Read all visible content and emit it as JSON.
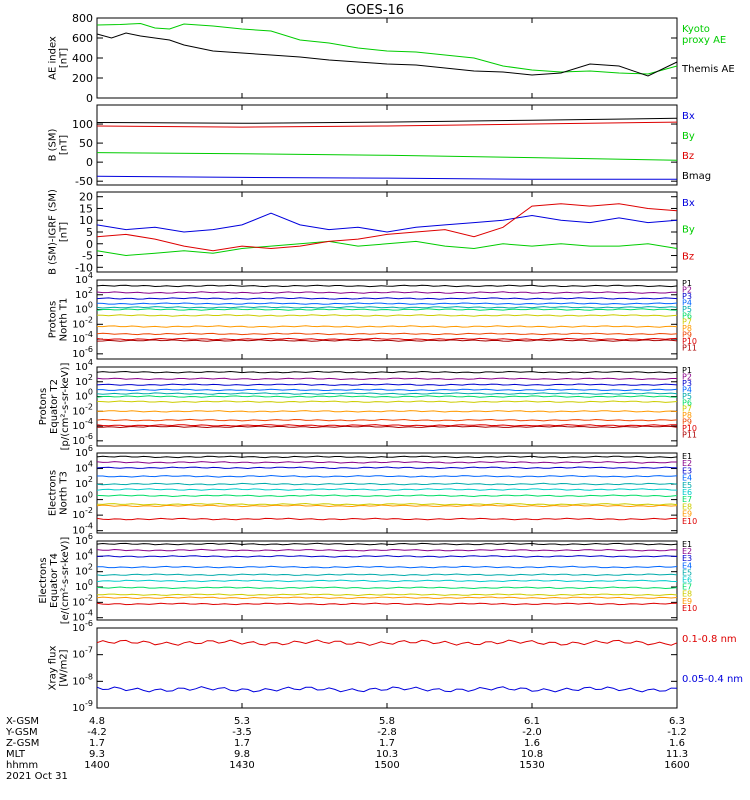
{
  "title": "GOES-16",
  "colors": {
    "black": "#000000",
    "green": "#00cc00",
    "blue": "#0000dd",
    "red": "#dd0000",
    "p": [
      "#000000",
      "#880088",
      "#0000cc",
      "#0066ff",
      "#00aaaa",
      "#00cccc",
      "#00dd66",
      "#cccc00",
      "#ff9900",
      "#ee4400",
      "#bb0000"
    ],
    "e": [
      "#000000",
      "#880088",
      "#0000cc",
      "#0066ff",
      "#00aaaa",
      "#00cccc",
      "#00dd66",
      "#cccc00",
      "#ff9900",
      "#dd0000",
      "#aa0000"
    ]
  },
  "chart_data": [
    {
      "type": "line",
      "ylabel": [
        "AE index",
        "[nT]"
      ],
      "ylim": [
        0,
        800
      ],
      "yticks": [
        0,
        200,
        400,
        600,
        800
      ],
      "yticklabels": [
        "0",
        "200",
        "400",
        "600",
        "800"
      ],
      "series": [
        {
          "name": "Kyoto proxy AE",
          "legend": [
            "Kyoto",
            "proxy AE"
          ],
          "color": "#00cc00",
          "x": [
            0,
            8,
            15,
            20,
            25,
            30,
            40,
            50,
            60,
            70,
            80,
            90,
            100,
            110,
            120,
            130,
            140,
            150,
            160,
            170,
            180,
            190,
            200
          ],
          "y": [
            730,
            735,
            745,
            700,
            690,
            740,
            720,
            690,
            670,
            580,
            550,
            500,
            470,
            460,
            430,
            400,
            320,
            280,
            260,
            270,
            250,
            240,
            320
          ]
        },
        {
          "name": "Themis AE",
          "legend": [
            "Themis AE"
          ],
          "color": "#000000",
          "x": [
            0,
            5,
            10,
            15,
            20,
            25,
            30,
            40,
            50,
            60,
            70,
            80,
            90,
            100,
            110,
            120,
            130,
            140,
            150,
            160,
            170,
            180,
            190,
            200
          ],
          "y": [
            640,
            600,
            650,
            620,
            600,
            580,
            530,
            470,
            450,
            430,
            410,
            380,
            360,
            340,
            330,
            300,
            270,
            260,
            230,
            250,
            340,
            320,
            220,
            360
          ]
        }
      ]
    },
    {
      "type": "line",
      "ylabel": [
        "B (SM)",
        "[nT]"
      ],
      "ylim": [
        -60,
        150
      ],
      "yticks": [
        -50,
        0,
        50,
        100
      ],
      "yticklabels": [
        "-50",
        "0",
        "50",
        "100"
      ],
      "series": [
        {
          "name": "Bx",
          "legend": [
            "Bx"
          ],
          "color": "#0000dd",
          "x": [
            0,
            50,
            100,
            150,
            200
          ],
          "y": [
            -37,
            -40,
            -42,
            -45,
            -45
          ]
        },
        {
          "name": "By",
          "legend": [
            "By"
          ],
          "color": "#00cc00",
          "x": [
            0,
            50,
            100,
            150,
            200
          ],
          "y": [
            25,
            22,
            18,
            12,
            5
          ]
        },
        {
          "name": "Bz",
          "legend": [
            "Bz"
          ],
          "color": "#dd0000",
          "x": [
            0,
            50,
            100,
            150,
            200
          ],
          "y": [
            95,
            92,
            95,
            100,
            105
          ]
        },
        {
          "name": "Bmag",
          "legend": [
            "Bmag"
          ],
          "color": "#000000",
          "x": [
            0,
            50,
            100,
            150,
            200
          ],
          "y": [
            104,
            102,
            105,
            110,
            115
          ]
        }
      ]
    },
    {
      "type": "line",
      "ylabel": [
        "B (SM)-IGRF (SM)",
        "[nT]"
      ],
      "ylim": [
        -12,
        22
      ],
      "yticks": [
        -10,
        -5,
        0,
        5,
        10,
        15,
        20
      ],
      "yticklabels": [
        "-10",
        "-5",
        "0",
        "5",
        "10",
        "15",
        "20"
      ],
      "series": [
        {
          "name": "Bx",
          "legend": [
            "Bx"
          ],
          "color": "#0000dd",
          "x": [
            0,
            10,
            20,
            30,
            40,
            50,
            60,
            70,
            80,
            90,
            100,
            110,
            120,
            130,
            140,
            150,
            160,
            170,
            180,
            190,
            200
          ],
          "y": [
            8,
            6,
            7,
            5,
            6,
            8,
            13,
            8,
            6,
            7,
            5,
            7,
            8,
            9,
            10,
            12,
            10,
            9,
            11,
            9,
            10
          ]
        },
        {
          "name": "By",
          "legend": [
            "By"
          ],
          "color": "#00cc00",
          "x": [
            0,
            10,
            20,
            30,
            40,
            50,
            60,
            70,
            80,
            90,
            100,
            110,
            120,
            130,
            140,
            150,
            160,
            170,
            180,
            190,
            200
          ],
          "y": [
            -3,
            -5,
            -4,
            -3,
            -4,
            -2,
            -1,
            0,
            1,
            -1,
            0,
            1,
            -1,
            -2,
            0,
            -1,
            0,
            -1,
            -1,
            0,
            -2
          ]
        },
        {
          "name": "Bz",
          "legend": [
            "Bz"
          ],
          "color": "#dd0000",
          "x": [
            0,
            10,
            20,
            30,
            40,
            50,
            60,
            70,
            80,
            90,
            100,
            110,
            120,
            130,
            140,
            150,
            160,
            170,
            180,
            190,
            200
          ],
          "y": [
            3,
            4,
            2,
            -1,
            -3,
            -1,
            -2,
            -1,
            1,
            2,
            4,
            5,
            6,
            3,
            7,
            16,
            17,
            16,
            17,
            15,
            14
          ]
        }
      ]
    },
    {
      "type": "line",
      "log": true,
      "ylabel": [
        "Protons",
        "North T1"
      ],
      "ylim": [
        -6.7,
        4
      ],
      "ytick_exp": [
        -6,
        -4,
        -2,
        0,
        2,
        4
      ],
      "series": [
        {
          "name": "P1",
          "legend": [
            "P1"
          ],
          "color": "#000000",
          "level": 3.2
        },
        {
          "name": "P2",
          "legend": [
            "P2"
          ],
          "color": "#880088",
          "level": 2.3
        },
        {
          "name": "P3",
          "legend": [
            "P3"
          ],
          "color": "#0000cc",
          "level": 1.5
        },
        {
          "name": "P4",
          "legend": [
            "P4"
          ],
          "color": "#0066ff",
          "level": 0.8
        },
        {
          "name": "P5",
          "legend": [
            "P5"
          ],
          "color": "#00aaaa",
          "level": 0.3
        },
        {
          "name": "P6",
          "legend": [
            "P6"
          ],
          "color": "#00dd66",
          "level": 0.0
        },
        {
          "name": "P7",
          "legend": [
            "P7"
          ],
          "color": "#cccc00",
          "level": -0.8
        },
        {
          "name": "P8",
          "legend": [
            "P8"
          ],
          "color": "#ff9900",
          "level": -2.3
        },
        {
          "name": "P9",
          "legend": [
            "P9"
          ],
          "color": "#ee4400",
          "level": -3.3
        },
        {
          "name": "P10",
          "legend": [
            "P10"
          ],
          "color": "#dd0000",
          "level": -4.0
        },
        {
          "name": "P11",
          "legend": [
            "P11"
          ],
          "color": "#aa0000",
          "level": -4.2
        }
      ]
    },
    {
      "type": "line",
      "log": true,
      "ylabel": [
        "Protons",
        "Equator T2",
        "[p/(cm²-s-sr-keV)]"
      ],
      "ylim": [
        -6.7,
        4
      ],
      "ytick_exp": [
        -6,
        -4,
        -2,
        0,
        2,
        4
      ],
      "series": [
        {
          "name": "P1",
          "legend": [
            "P1"
          ],
          "color": "#000000",
          "level": 3.3
        },
        {
          "name": "P2",
          "legend": [
            "P2"
          ],
          "color": "#880088",
          "level": 2.4
        },
        {
          "name": "P3",
          "legend": [
            "P3"
          ],
          "color": "#0000cc",
          "level": 1.6
        },
        {
          "name": "P4",
          "legend": [
            "P4"
          ],
          "color": "#0066ff",
          "level": 0.9
        },
        {
          "name": "P5",
          "legend": [
            "P5"
          ],
          "color": "#00aaaa",
          "level": 0.4
        },
        {
          "name": "P6",
          "legend": [
            "P6"
          ],
          "color": "#00dd66",
          "level": 0.0
        },
        {
          "name": "P7",
          "legend": [
            "P7"
          ],
          "color": "#cccc00",
          "level": -0.7
        },
        {
          "name": "P8",
          "legend": [
            "P8"
          ],
          "color": "#ff9900",
          "level": -2.0
        },
        {
          "name": "P9",
          "legend": [
            "P9"
          ],
          "color": "#ee4400",
          "level": -3.2
        },
        {
          "name": "P10",
          "legend": [
            "P10"
          ],
          "color": "#dd0000",
          "level": -3.9
        },
        {
          "name": "P11",
          "legend": [
            "P11"
          ],
          "color": "#aa0000",
          "level": -4.1
        }
      ]
    },
    {
      "type": "line",
      "log": true,
      "ylabel": [
        "Electrons",
        "North T3"
      ],
      "ylim": [
        -4.3,
        6
      ],
      "ytick_exp": [
        -4,
        -2,
        0,
        2,
        4,
        6
      ],
      "series": [
        {
          "name": "E1",
          "legend": [
            "E1"
          ],
          "color": "#000000",
          "level": 5.5
        },
        {
          "name": "E2",
          "legend": [
            "E2"
          ],
          "color": "#880088",
          "level": 4.8
        },
        {
          "name": "E3",
          "legend": [
            "E3"
          ],
          "color": "#0000cc",
          "level": 4.1
        },
        {
          "name": "E4",
          "legend": [
            "E4"
          ],
          "color": "#0066ff",
          "level": 3.0
        },
        {
          "name": "E5",
          "legend": [
            "E5"
          ],
          "color": "#00aaaa",
          "level": 2.0
        },
        {
          "name": "E6",
          "legend": [
            "E6"
          ],
          "color": "#00cccc",
          "level": 1.3
        },
        {
          "name": "E7",
          "legend": [
            "E7"
          ],
          "color": "#00dd66",
          "level": 0.5
        },
        {
          "name": "E8",
          "legend": [
            "E8"
          ],
          "color": "#cccc00",
          "level": -0.6
        },
        {
          "name": "E9",
          "legend": [
            "E9"
          ],
          "color": "#ff9900",
          "level": -0.8
        },
        {
          "name": "E10",
          "legend": [
            "E10"
          ],
          "color": "#dd0000",
          "level": -2.5
        }
      ]
    },
    {
      "type": "line",
      "log": true,
      "ylabel": [
        "Electrons",
        "Equator T4",
        "[e/(cm²-s-sr-keV)]"
      ],
      "ylim": [
        -4.3,
        6
      ],
      "ytick_exp": [
        -4,
        -2,
        0,
        2,
        4,
        6
      ],
      "series": [
        {
          "name": "E1",
          "legend": [
            "E1"
          ],
          "color": "#000000",
          "level": 5.6
        },
        {
          "name": "E2",
          "legend": [
            "E2"
          ],
          "color": "#880088",
          "level": 4.8
        },
        {
          "name": "E3",
          "legend": [
            "E3"
          ],
          "color": "#0000cc",
          "level": 4.0
        },
        {
          "name": "E4",
          "legend": [
            "E4"
          ],
          "color": "#0066ff",
          "level": 2.6
        },
        {
          "name": "E5",
          "legend": [
            "E5"
          ],
          "color": "#00aaaa",
          "level": 1.6
        },
        {
          "name": "E6",
          "legend": [
            "E6"
          ],
          "color": "#00cccc",
          "level": 0.8
        },
        {
          "name": "E7",
          "legend": [
            "E7"
          ],
          "color": "#00dd66",
          "level": -0.1
        },
        {
          "name": "E8",
          "legend": [
            "E8"
          ],
          "color": "#cccc00",
          "level": -1.0
        },
        {
          "name": "E9",
          "legend": [
            "E9"
          ],
          "color": "#ff9900",
          "level": -1.4
        },
        {
          "name": "E10",
          "legend": [
            "E10"
          ],
          "color": "#dd0000",
          "level": -2.2
        }
      ]
    },
    {
      "type": "line",
      "log": true,
      "ylabel": [
        "Xray flux",
        "[W/m2]"
      ],
      "ylim": [
        -9,
        -6
      ],
      "ytick_exp": [
        -9,
        -8,
        -7,
        -6
      ],
      "series": [
        {
          "name": "0.1-0.8 nm",
          "legend": [
            "0.1-0.8 nm"
          ],
          "color": "#dd0000",
          "level": -6.55
        },
        {
          "name": "0.05-0.4 nm",
          "legend": [
            "0.05-0.4 nm"
          ],
          "color": "#0000dd",
          "level": -8.3
        }
      ]
    }
  ],
  "x_axis": {
    "xlim": [
      0,
      200
    ],
    "ticks": [
      0,
      50,
      100,
      150,
      200
    ],
    "row_labels": [
      "X-GSM",
      "Y-GSM",
      "Z-GSM",
      "MLT",
      "hhmm"
    ],
    "rows": [
      [
        "4.8",
        "5.3",
        "5.8",
        "6.1",
        "6.3"
      ],
      [
        "-4.2",
        "-3.5",
        "-2.8",
        "-2.0",
        "-1.2"
      ],
      [
        "1.7",
        "1.7",
        "1.7",
        "1.6",
        "1.6"
      ],
      [
        "9.3",
        "9.8",
        "10.3",
        "10.8",
        "11.3"
      ],
      [
        "1400",
        "1430",
        "1500",
        "1530",
        "1600"
      ]
    ],
    "date": "2021 Oct 31"
  }
}
